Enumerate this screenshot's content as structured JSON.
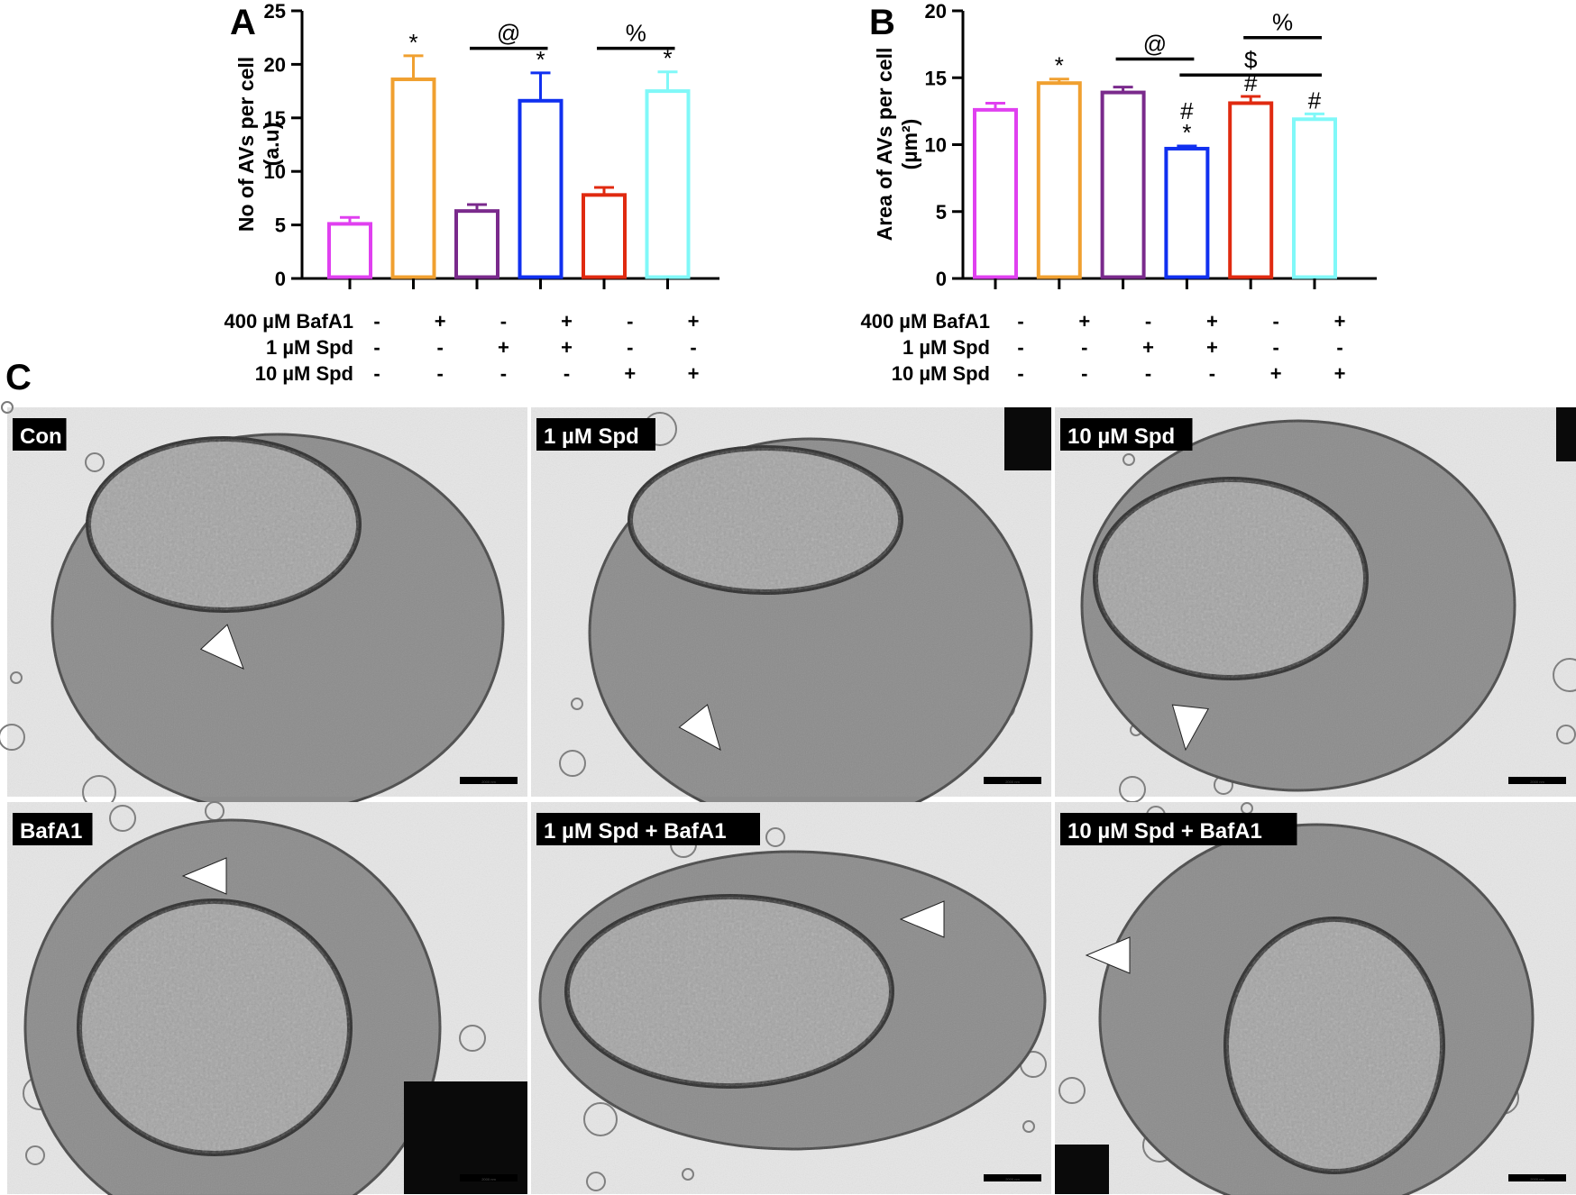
{
  "panel_letters": {
    "a": "A",
    "b": "B",
    "c": "C"
  },
  "chart_data": [
    {
      "type": "bar",
      "panel": "A",
      "title": "",
      "xlabel": "",
      "ylabel_line1": "No of AVs per cell",
      "ylabel_line2": "(a.u)",
      "ylim": [
        0,
        25
      ],
      "yticks": [
        "0",
        "5",
        "10",
        "15",
        "20",
        "25"
      ],
      "categories": [
        "Con",
        "BafA1",
        "1 µM Spd",
        "1 µM Spd + BafA1",
        "10 µM Spd",
        "10 µM Spd + BafA1"
      ],
      "values": [
        5.1,
        18.6,
        6.3,
        16.6,
        7.8,
        17.5
      ],
      "errors": [
        0.6,
        2.2,
        0.6,
        2.6,
        0.7,
        1.8
      ],
      "colors": [
        "#e040f0",
        "#f0a030",
        "#7a2a8c",
        "#1030f0",
        "#e02a10",
        "#80f8f8"
      ],
      "bar_labels": [
        "",
        "*",
        "",
        "*",
        "",
        "*"
      ],
      "comparisons": [
        {
          "label": "@",
          "from": 2,
          "to": 3,
          "y": 21.5
        },
        {
          "label": "%",
          "from": 4,
          "to": 5,
          "y": 21.5
        }
      ],
      "grid": false,
      "legend": "none"
    },
    {
      "type": "bar",
      "panel": "B",
      "title": "",
      "xlabel": "",
      "ylabel_line1": "Area of AVs per cell",
      "ylabel_line2": "(µm²)",
      "ylim": [
        0,
        20
      ],
      "yticks": [
        "0",
        "5",
        "10",
        "15",
        "20"
      ],
      "categories": [
        "Con",
        "BafA1",
        "1 µM Spd",
        "1 µM Spd + BafA1",
        "10 µM Spd",
        "10 µM Spd + BafA1"
      ],
      "values": [
        12.6,
        14.6,
        13.9,
        9.7,
        13.1,
        11.9
      ],
      "errors": [
        0.5,
        0.3,
        0.4,
        0.2,
        0.5,
        0.4
      ],
      "colors": [
        "#e040f0",
        "#f0a030",
        "#7a2a8c",
        "#1030f0",
        "#e02a10",
        "#80f8f8"
      ],
      "bar_labels": [
        "",
        "*",
        "",
        "#\n*",
        "#",
        "#"
      ],
      "comparisons": [
        {
          "label": "@",
          "from": 2,
          "to": 3,
          "y": 16.4
        },
        {
          "label": "$",
          "from": 3,
          "to": 5,
          "y": 15.2
        },
        {
          "label": "%",
          "from": 4,
          "to": 5,
          "y": 18.0
        }
      ],
      "grid": false,
      "legend": "none"
    }
  ],
  "treatments": [
    {
      "label": "400 µM BafA1",
      "signs": [
        "-",
        "+",
        "-",
        "+",
        "-",
        "+"
      ]
    },
    {
      "label": "1 µM Spd",
      "signs": [
        "-",
        "-",
        "+",
        "+",
        "-",
        "-"
      ]
    },
    {
      "label": "10 µM Spd",
      "signs": [
        "-",
        "-",
        "-",
        "-",
        "+",
        "+"
      ]
    }
  ],
  "micrographs": [
    {
      "label": "Con",
      "scale_text": "2000 nm"
    },
    {
      "label": "1 µM Spd",
      "scale_text": "2000 nm"
    },
    {
      "label": "10 µM Spd",
      "scale_text": "2000 nm"
    },
    {
      "label": "BafA1",
      "scale_text": "2000 nm"
    },
    {
      "label": "1 µM Spd + BafA1",
      "scale_text": "2000 nm"
    },
    {
      "label": "10 µM Spd + BafA1",
      "scale_text": "2000 nm"
    }
  ]
}
